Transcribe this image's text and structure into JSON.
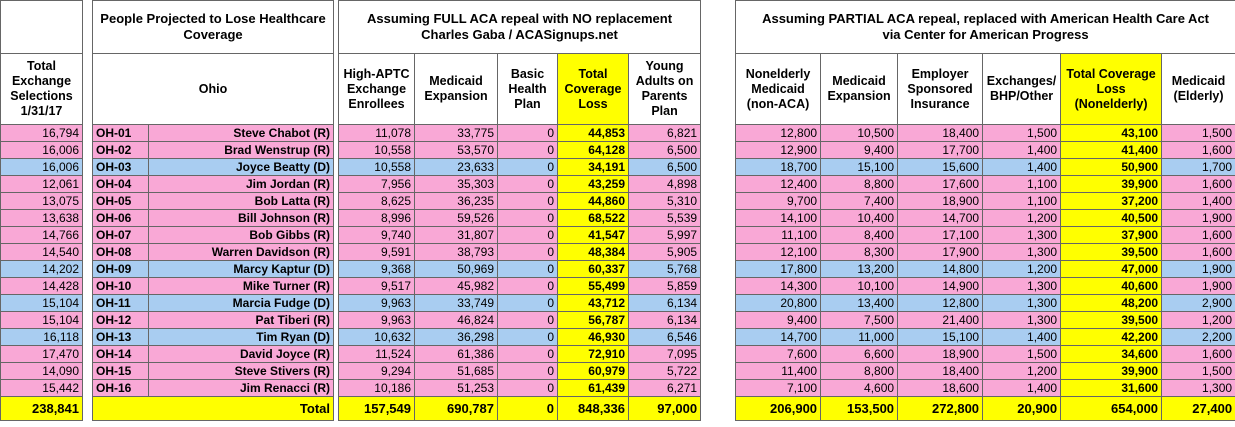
{
  "header": {
    "selections_label": "Total Exchange Selections 1/31/17",
    "people_label": "People Projected to Lose Healthcare Coverage",
    "state": "Ohio",
    "full_repeal": {
      "title": "Assuming FULL ACA repeal with NO replacement",
      "source": "Charles Gaba / ACASignups.net",
      "columns": [
        "High-APTC Exchange Enrollees",
        "Medicaid Expansion",
        "Basic Health Plan",
        "Total Coverage Loss",
        "Young Adults on Parents Plan"
      ]
    },
    "partial_repeal": {
      "title": "Assuming PARTIAL ACA repeal, replaced with American Health Care Act",
      "source": "via Center for American Progress",
      "columns": [
        "Nonelderly Medicaid (non-ACA)",
        "Medicaid Expansion",
        "Employer Sponsored Insurance",
        "Exchanges/ BHP/Other",
        "Total Coverage Loss (Nonelderly)",
        "Medicaid (Elderly)"
      ]
    }
  },
  "table": {
    "rows": [
      {
        "color": "#f9a8d6",
        "cells": [
          "16,794",
          "OH-01",
          "Steve Chabot (R)",
          "11,078",
          "33,775",
          "0",
          "44,853",
          "6,821",
          "12,800",
          "10,500",
          "18,400",
          "1,500",
          "43,100",
          "1,500"
        ]
      },
      {
        "color": "#f9a8d6",
        "cells": [
          "16,006",
          "OH-02",
          "Brad Wenstrup (R)",
          "10,558",
          "53,570",
          "0",
          "64,128",
          "6,500",
          "12,900",
          "9,400",
          "17,700",
          "1,400",
          "41,400",
          "1,600"
        ]
      },
      {
        "color": "#a9cdf1",
        "cells": [
          "16,006",
          "OH-03",
          "Joyce Beatty (D)",
          "10,558",
          "23,633",
          "0",
          "34,191",
          "6,500",
          "18,700",
          "15,100",
          "15,600",
          "1,400",
          "50,900",
          "1,700"
        ]
      },
      {
        "color": "#f9a8d6",
        "cells": [
          "12,061",
          "OH-04",
          "Jim Jordan (R)",
          "7,956",
          "35,303",
          "0",
          "43,259",
          "4,898",
          "12,400",
          "8,800",
          "17,600",
          "1,100",
          "39,900",
          "1,600"
        ]
      },
      {
        "color": "#f9a8d6",
        "cells": [
          "13,075",
          "OH-05",
          "Bob Latta (R)",
          "8,625",
          "36,235",
          "0",
          "44,860",
          "5,310",
          "9,700",
          "7,400",
          "18,900",
          "1,100",
          "37,200",
          "1,400"
        ]
      },
      {
        "color": "#f9a8d6",
        "cells": [
          "13,638",
          "OH-06",
          "Bill Johnson (R)",
          "8,996",
          "59,526",
          "0",
          "68,522",
          "5,539",
          "14,100",
          "10,400",
          "14,700",
          "1,200",
          "40,500",
          "1,900"
        ]
      },
      {
        "color": "#f9a8d6",
        "cells": [
          "14,766",
          "OH-07",
          "Bob Gibbs (R)",
          "9,740",
          "31,807",
          "0",
          "41,547",
          "5,997",
          "11,100",
          "8,400",
          "17,100",
          "1,300",
          "37,900",
          "1,600"
        ]
      },
      {
        "color": "#f9a8d6",
        "cells": [
          "14,540",
          "OH-08",
          "Warren Davidson (R)",
          "9,591",
          "38,793",
          "0",
          "48,384",
          "5,905",
          "12,100",
          "8,300",
          "17,900",
          "1,300",
          "39,500",
          "1,600"
        ]
      },
      {
        "color": "#a9cdf1",
        "cells": [
          "14,202",
          "OH-09",
          "Marcy Kaptur (D)",
          "9,368",
          "50,969",
          "0",
          "60,337",
          "5,768",
          "17,800",
          "13,200",
          "14,800",
          "1,200",
          "47,000",
          "1,900"
        ]
      },
      {
        "color": "#f9a8d6",
        "cells": [
          "14,428",
          "OH-10",
          "Mike Turner (R)",
          "9,517",
          "45,982",
          "0",
          "55,499",
          "5,859",
          "14,300",
          "10,100",
          "14,900",
          "1,300",
          "40,600",
          "1,900"
        ]
      },
      {
        "color": "#a9cdf1",
        "cells": [
          "15,104",
          "OH-11",
          "Marcia Fudge (D)",
          "9,963",
          "33,749",
          "0",
          "43,712",
          "6,134",
          "20,800",
          "13,400",
          "12,800",
          "1,300",
          "48,200",
          "2,900"
        ]
      },
      {
        "color": "#f9a8d6",
        "cells": [
          "15,104",
          "OH-12",
          "Pat Tiberi (R)",
          "9,963",
          "46,824",
          "0",
          "56,787",
          "6,134",
          "9,400",
          "7,500",
          "21,400",
          "1,300",
          "39,500",
          "1,200"
        ]
      },
      {
        "color": "#a9cdf1",
        "cells": [
          "16,118",
          "OH-13",
          "Tim Ryan (D)",
          "10,632",
          "36,298",
          "0",
          "46,930",
          "6,546",
          "14,700",
          "11,000",
          "15,100",
          "1,400",
          "42,200",
          "2,200"
        ]
      },
      {
        "color": "#f9a8d6",
        "cells": [
          "17,470",
          "OH-14",
          "David Joyce (R)",
          "11,524",
          "61,386",
          "0",
          "72,910",
          "7,095",
          "7,600",
          "6,600",
          "18,900",
          "1,500",
          "34,600",
          "1,600"
        ]
      },
      {
        "color": "#f9a8d6",
        "cells": [
          "14,090",
          "OH-15",
          "Steve Stivers (R)",
          "9,294",
          "51,685",
          "0",
          "60,979",
          "5,722",
          "11,400",
          "8,800",
          "18,400",
          "1,200",
          "39,900",
          "1,500"
        ]
      },
      {
        "color": "#f9a8d6",
        "cells": [
          "15,442",
          "OH-16",
          "Jim Renacci (R)",
          "10,186",
          "51,253",
          "0",
          "61,439",
          "6,271",
          "7,100",
          "4,600",
          "18,600",
          "1,400",
          "31,600",
          "1,300"
        ]
      }
    ],
    "total": {
      "color": "#ffff00",
      "cells": [
        "238,841",
        "Total",
        "157,549",
        "690,787",
        "0",
        "848,336",
        "97,000",
        "206,900",
        "153,500",
        "272,800",
        "20,900",
        "654,000",
        "27,400"
      ]
    }
  }
}
